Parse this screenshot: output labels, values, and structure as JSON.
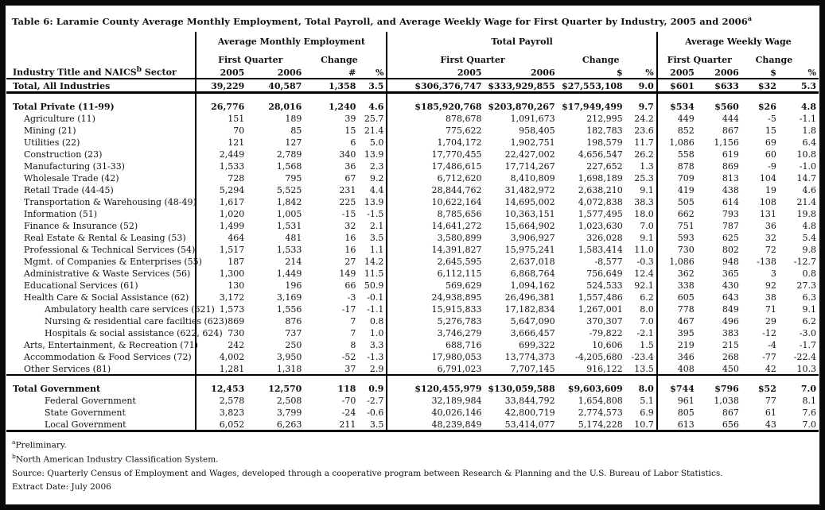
{
  "title": {
    "text": "Table 6: Laramie County Average Monthly Employment, Total Payroll, and Average Weekly Wage for First Quarter by Industry, 2005 and 2006",
    "sup": "a"
  },
  "table": {
    "groups": [
      {
        "label": "Average Monthly Employment"
      },
      {
        "label": "Total Payroll"
      },
      {
        "label": "Average Weekly Wage"
      }
    ],
    "subheaders": {
      "first_quarter": "First Quarter",
      "change": "Change"
    },
    "col_headers": {
      "industry_pre": "Industry Title and NAICS",
      "industry_sup": "b",
      "industry_post": " Sector",
      "g1": [
        "2005",
        "2006",
        "#",
        "%"
      ],
      "g2": [
        "2005",
        "2006",
        "$",
        "%"
      ],
      "g3": [
        "2005",
        "2006",
        "$",
        "%"
      ]
    },
    "rows": [
      {
        "label": "Total, All Industries",
        "indent": 0,
        "bold": true,
        "rule_below": "thick",
        "emp": [
          "39,229",
          "40,587",
          "1,358",
          "3.5"
        ],
        "pay": [
          "$306,376,747",
          "$333,929,855",
          "$27,553,108",
          "9.0"
        ],
        "wage": [
          "$601",
          "$633",
          "$32",
          "5.3"
        ]
      },
      {
        "label": "Total Private (11-99)",
        "indent": 0,
        "bold": true,
        "gap_before": true,
        "emp": [
          "26,776",
          "28,016",
          "1,240",
          "4.6"
        ],
        "pay": [
          "$185,920,768",
          "$203,870,267",
          "$17,949,499",
          "9.7"
        ],
        "wage": [
          "$534",
          "$560",
          "$26",
          "4.8"
        ]
      },
      {
        "label": "Agriculture (11)",
        "indent": 1,
        "emp": [
          "151",
          "189",
          "39",
          "25.7"
        ],
        "pay": [
          "878,678",
          "1,091,673",
          "212,995",
          "24.2"
        ],
        "wage": [
          "449",
          "444",
          "-5",
          "-1.1"
        ]
      },
      {
        "label": "Mining (21)",
        "indent": 1,
        "emp": [
          "70",
          "85",
          "15",
          "21.4"
        ],
        "pay": [
          "775,622",
          "958,405",
          "182,783",
          "23.6"
        ],
        "wage": [
          "852",
          "867",
          "15",
          "1.8"
        ]
      },
      {
        "label": "Utilities (22)",
        "indent": 1,
        "emp": [
          "121",
          "127",
          "6",
          "5.0"
        ],
        "pay": [
          "1,704,172",
          "1,902,751",
          "198,579",
          "11.7"
        ],
        "wage": [
          "1,086",
          "1,156",
          "69",
          "6.4"
        ]
      },
      {
        "label": "Construction (23)",
        "indent": 1,
        "emp": [
          "2,449",
          "2,789",
          "340",
          "13.9"
        ],
        "pay": [
          "17,770,455",
          "22,427,002",
          "4,656,547",
          "26.2"
        ],
        "wage": [
          "558",
          "619",
          "60",
          "10.8"
        ]
      },
      {
        "label": "Manufacturing (31-33)",
        "indent": 1,
        "emp": [
          "1,533",
          "1,568",
          "36",
          "2.3"
        ],
        "pay": [
          "17,486,615",
          "17,714,267",
          "227,652",
          "1.3"
        ],
        "wage": [
          "878",
          "869",
          "-9",
          "-1.0"
        ]
      },
      {
        "label": "Wholesale Trade (42)",
        "indent": 1,
        "emp": [
          "728",
          "795",
          "67",
          "9.2"
        ],
        "pay": [
          "6,712,620",
          "8,410,809",
          "1,698,189",
          "25.3"
        ],
        "wage": [
          "709",
          "813",
          "104",
          "14.7"
        ]
      },
      {
        "label": "Retail Trade (44-45)",
        "indent": 1,
        "emp": [
          "5,294",
          "5,525",
          "231",
          "4.4"
        ],
        "pay": [
          "28,844,762",
          "31,482,972",
          "2,638,210",
          "9.1"
        ],
        "wage": [
          "419",
          "438",
          "19",
          "4.6"
        ]
      },
      {
        "label": "Transportation & Warehousing (48-49)",
        "indent": 1,
        "emp": [
          "1,617",
          "1,842",
          "225",
          "13.9"
        ],
        "pay": [
          "10,622,164",
          "14,695,002",
          "4,072,838",
          "38.3"
        ],
        "wage": [
          "505",
          "614",
          "108",
          "21.4"
        ]
      },
      {
        "label": "Information (51)",
        "indent": 1,
        "emp": [
          "1,020",
          "1,005",
          "-15",
          "-1.5"
        ],
        "pay": [
          "8,785,656",
          "10,363,151",
          "1,577,495",
          "18.0"
        ],
        "wage": [
          "662",
          "793",
          "131",
          "19.8"
        ]
      },
      {
        "label": "Finance & Insurance (52)",
        "indent": 1,
        "emp": [
          "1,499",
          "1,531",
          "32",
          "2.1"
        ],
        "pay": [
          "14,641,272",
          "15,664,902",
          "1,023,630",
          "7.0"
        ],
        "wage": [
          "751",
          "787",
          "36",
          "4.8"
        ]
      },
      {
        "label": "Real Estate & Rental & Leasing (53)",
        "indent": 1,
        "emp": [
          "464",
          "481",
          "16",
          "3.5"
        ],
        "pay": [
          "3,580,899",
          "3,906,927",
          "326,028",
          "9.1"
        ],
        "wage": [
          "593",
          "625",
          "32",
          "5.4"
        ]
      },
      {
        "label": "Professional & Technical Services (54)",
        "indent": 1,
        "emp": [
          "1,517",
          "1,533",
          "16",
          "1.1"
        ],
        "pay": [
          "14,391,827",
          "15,975,241",
          "1,583,414",
          "11.0"
        ],
        "wage": [
          "730",
          "802",
          "72",
          "9.8"
        ]
      },
      {
        "label": "Mgmt. of Companies & Enterprises (55)",
        "indent": 1,
        "emp": [
          "187",
          "214",
          "27",
          "14.2"
        ],
        "pay": [
          "2,645,595",
          "2,637,018",
          "-8,577",
          "-0.3"
        ],
        "wage": [
          "1,086",
          "948",
          "-138",
          "-12.7"
        ]
      },
      {
        "label": "Administrative & Waste Services (56)",
        "indent": 1,
        "emp": [
          "1,300",
          "1,449",
          "149",
          "11.5"
        ],
        "pay": [
          "6,112,115",
          "6,868,764",
          "756,649",
          "12.4"
        ],
        "wage": [
          "362",
          "365",
          "3",
          "0.8"
        ]
      },
      {
        "label": "Educational Services (61)",
        "indent": 1,
        "emp": [
          "130",
          "196",
          "66",
          "50.9"
        ],
        "pay": [
          "569,629",
          "1,094,162",
          "524,533",
          "92.1"
        ],
        "wage": [
          "338",
          "430",
          "92",
          "27.3"
        ]
      },
      {
        "label": "Health Care & Social Assistance (62)",
        "indent": 1,
        "emp": [
          "3,172",
          "3,169",
          "-3",
          "-0.1"
        ],
        "pay": [
          "24,938,895",
          "26,496,381",
          "1,557,486",
          "6.2"
        ],
        "wage": [
          "605",
          "643",
          "38",
          "6.3"
        ]
      },
      {
        "label": "Ambulatory health care services (621)",
        "indent": 2,
        "emp": [
          "1,573",
          "1,556",
          "-17",
          "-1.1"
        ],
        "pay": [
          "15,915,833",
          "17,182,834",
          "1,267,001",
          "8.0"
        ],
        "wage": [
          "778",
          "849",
          "71",
          "9.1"
        ]
      },
      {
        "label": "Nursing & residential care facilties (623)",
        "indent": 2,
        "emp": [
          "869",
          "876",
          "7",
          "0.8"
        ],
        "pay": [
          "5,276,783",
          "5,647,090",
          "370,307",
          "7.0"
        ],
        "wage": [
          "467",
          "496",
          "29",
          "6.2"
        ]
      },
      {
        "label": "Hospitals & social assistance (622, 624)",
        "indent": 2,
        "emp": [
          "730",
          "737",
          "7",
          "1.0"
        ],
        "pay": [
          "3,746,279",
          "3,666,457",
          "-79,822",
          "-2.1"
        ],
        "wage": [
          "395",
          "383",
          "-12",
          "-3.0"
        ]
      },
      {
        "label": "Arts, Entertainment, & Recreation (71)",
        "indent": 1,
        "emp": [
          "242",
          "250",
          "8",
          "3.3"
        ],
        "pay": [
          "688,716",
          "699,322",
          "10,606",
          "1.5"
        ],
        "wage": [
          "219",
          "215",
          "-4",
          "-1.7"
        ]
      },
      {
        "label": "Accommodation & Food Services (72)",
        "indent": 1,
        "emp": [
          "4,002",
          "3,950",
          "-52",
          "-1.3"
        ],
        "pay": [
          "17,980,053",
          "13,774,373",
          "-4,205,680",
          "-23.4"
        ],
        "wage": [
          "346",
          "268",
          "-77",
          "-22.4"
        ]
      },
      {
        "label": "Other Services  (81)",
        "indent": 1,
        "rule_below": "medium",
        "emp": [
          "1,281",
          "1,318",
          "37",
          "2.9"
        ],
        "pay": [
          "6,791,023",
          "7,707,145",
          "916,122",
          "13.5"
        ],
        "wage": [
          "408",
          "450",
          "42",
          "10.3"
        ]
      },
      {
        "label": "Total Government",
        "indent": 0,
        "bold": true,
        "gap_before": true,
        "emp": [
          "12,453",
          "12,570",
          "118",
          "0.9"
        ],
        "pay": [
          "$120,455,979",
          "$130,059,588",
          "$9,603,609",
          "8.0"
        ],
        "wage": [
          "$744",
          "$796",
          "$52",
          "7.0"
        ]
      },
      {
        "label": "Federal Government",
        "indent": 2,
        "emp": [
          "2,578",
          "2,508",
          "-70",
          "-2.7"
        ],
        "pay": [
          "32,189,984",
          "33,844,792",
          "1,654,808",
          "5.1"
        ],
        "wage": [
          "961",
          "1,038",
          "77",
          "8.1"
        ]
      },
      {
        "label": "State Government",
        "indent": 2,
        "emp": [
          "3,823",
          "3,799",
          "-24",
          "-0.6"
        ],
        "pay": [
          "40,026,146",
          "42,800,719",
          "2,774,573",
          "6.9"
        ],
        "wage": [
          "805",
          "867",
          "61",
          "7.6"
        ]
      },
      {
        "label": "Local Government",
        "indent": 2,
        "rule_below": "thick",
        "emp": [
          "6,052",
          "6,263",
          "211",
          "3.5"
        ],
        "pay": [
          "48,239,849",
          "53,414,077",
          "5,174,228",
          "10.7"
        ],
        "wage": [
          "613",
          "656",
          "43",
          "7.0"
        ]
      }
    ]
  },
  "footnotes": [
    {
      "sup": "a",
      "text": "Preliminary."
    },
    {
      "sup": "b",
      "text": "North American Industry Classification System."
    },
    {
      "sup": "",
      "text": "Source: Quarterly Census of Employment and Wages, developed through a cooperative program between Research & Planning and the U.S. Bureau of Labor Statistics."
    },
    {
      "sup": "",
      "text": "Extract Date: July 2006"
    }
  ]
}
